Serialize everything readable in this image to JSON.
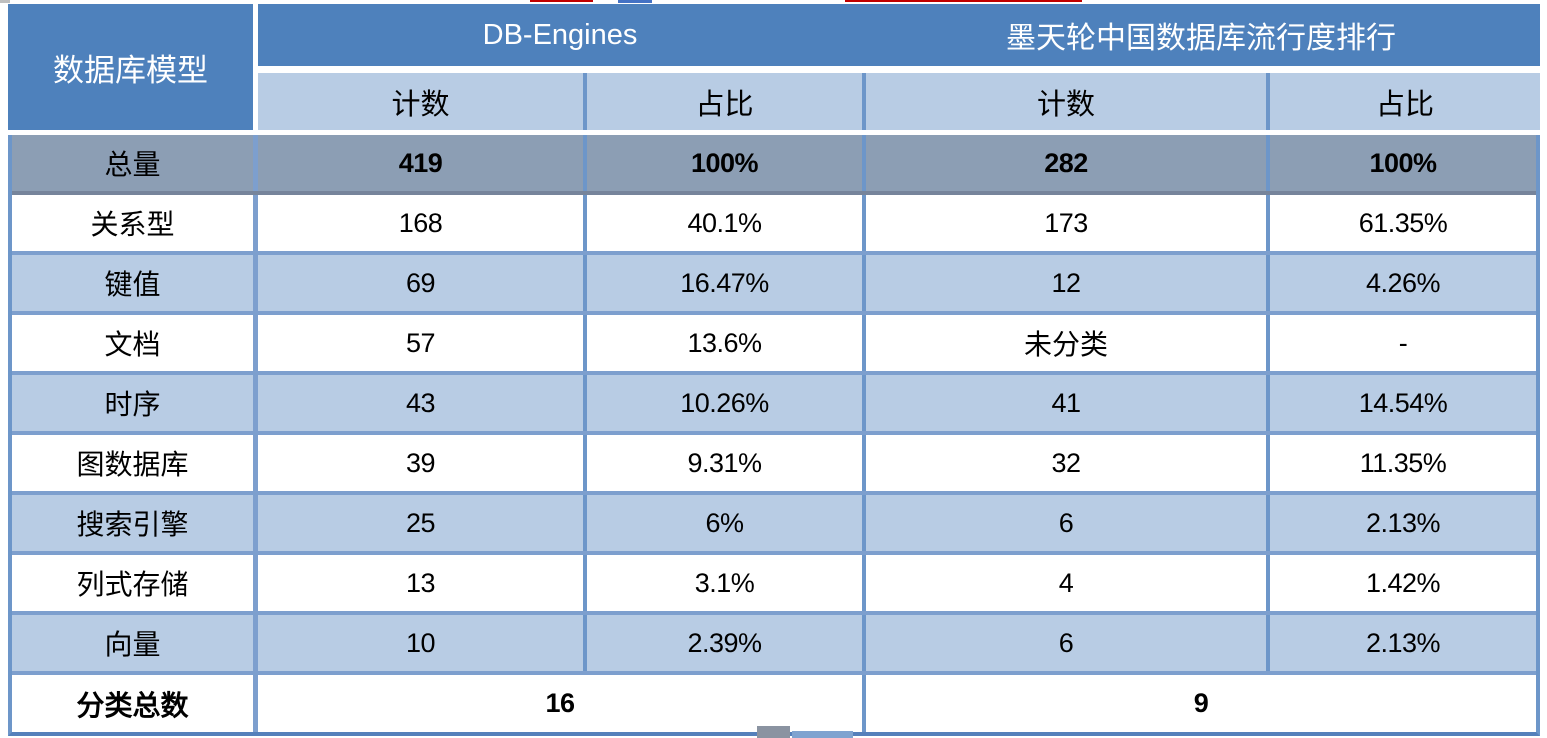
{
  "table": {
    "corner_header": "数据库模型",
    "groups": [
      {
        "label": "DB-Engines",
        "sub": [
          "计数",
          "占比"
        ]
      },
      {
        "label": "墨天轮中国数据库流行度排行",
        "sub": [
          "计数",
          "占比"
        ]
      }
    ],
    "total_row": {
      "label": "总量",
      "values": [
        "419",
        "100%",
        "282",
        "100%"
      ]
    },
    "rows": [
      {
        "label": "关系型",
        "values": [
          "168",
          "40.1%",
          "173",
          "61.35%"
        ]
      },
      {
        "label": "键值",
        "values": [
          "69",
          "16.47%",
          "12",
          "4.26%"
        ]
      },
      {
        "label": "文档",
        "values": [
          "57",
          "13.6%",
          "未分类",
          "-"
        ]
      },
      {
        "label": "时序",
        "values": [
          "43",
          "10.26%",
          "41",
          "14.54%"
        ]
      },
      {
        "label": "图数据库",
        "values": [
          "39",
          "9.31%",
          "32",
          "11.35%"
        ]
      },
      {
        "label": "搜索引擎",
        "values": [
          "25",
          "6%",
          "6",
          "2.13%"
        ]
      },
      {
        "label": "列式存储",
        "values": [
          "13",
          "3.1%",
          "4",
          "1.42%"
        ]
      },
      {
        "label": "向量",
        "values": [
          "10",
          "2.39%",
          "6",
          "2.13%"
        ]
      }
    ],
    "summary_row": {
      "label": "分类总数",
      "values": [
        "16",
        "9"
      ]
    }
  },
  "colors": {
    "header_blue": "#4E81BC",
    "light_blue_row": "#B8CCE4",
    "total_row_gray": "#8C9EB4",
    "border_blue": "#6D96C9",
    "row_border_blue": "#7D9FCE",
    "artifact_red": "#C00000",
    "artifact_blue": "#4472C4"
  },
  "chart_data": {
    "type": "table",
    "title": "数据库模型 — DB-Engines vs 墨天轮中国数据库流行度排行",
    "columns": [
      "数据库模型",
      "DB-Engines 计数",
      "DB-Engines 占比",
      "墨天轮 计数",
      "墨天轮 占比"
    ],
    "rows": [
      [
        "总量",
        "419",
        "100%",
        "282",
        "100%"
      ],
      [
        "关系型",
        "168",
        "40.1%",
        "173",
        "61.35%"
      ],
      [
        "键值",
        "69",
        "16.47%",
        "12",
        "4.26%"
      ],
      [
        "文档",
        "57",
        "13.6%",
        "未分类",
        "-"
      ],
      [
        "时序",
        "43",
        "10.26%",
        "41",
        "14.54%"
      ],
      [
        "图数据库",
        "39",
        "9.31%",
        "32",
        "11.35%"
      ],
      [
        "搜索引擎",
        "25",
        "6%",
        "6",
        "2.13%"
      ],
      [
        "列式存储",
        "13",
        "3.1%",
        "4",
        "1.42%"
      ],
      [
        "向量",
        "10",
        "2.39%",
        "6",
        "2.13%"
      ],
      [
        "分类总数",
        "16",
        "",
        "9",
        ""
      ]
    ]
  }
}
